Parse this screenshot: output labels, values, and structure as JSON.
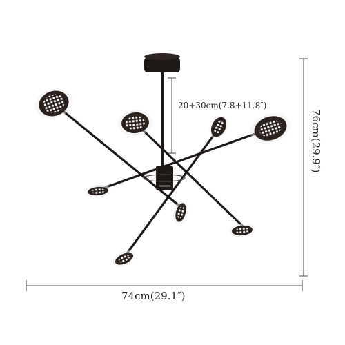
{
  "product": {
    "name": "sputnik-chandelier",
    "finish_color": "#1f1a17",
    "led_color": "#f2f2f2"
  },
  "dimensions": {
    "drop_label": "20+30cm(7.8+11.8″)",
    "width_label": "74cm(29.1″)",
    "height_label": "76cm(29.9″)",
    "line_color": "#444444"
  }
}
